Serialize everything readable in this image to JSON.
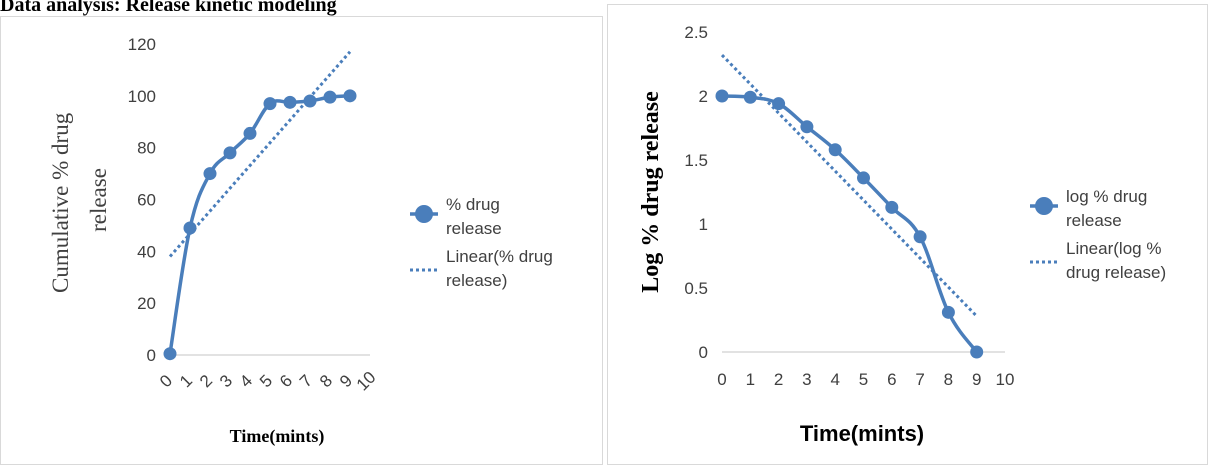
{
  "page": {
    "heading": "Data analysis: Release kinetic modeling"
  },
  "chart_data": [
    {
      "type": "line",
      "title": "",
      "xlabel": "Time(mints)",
      "ylabel": "Cumulative % drug release",
      "xlim": [
        0,
        10
      ],
      "ylim": [
        0,
        120
      ],
      "yticks": [
        0,
        20,
        40,
        60,
        80,
        100,
        120
      ],
      "xticks": [
        "0",
        "1",
        "2",
        "3",
        "4",
        "5",
        "6",
        "7",
        "8",
        "9",
        "10"
      ],
      "x": [
        0,
        1,
        2,
        3,
        4,
        5,
        6,
        7,
        8,
        9
      ],
      "series": [
        {
          "name": "% drug release",
          "values": [
            0.5,
            49,
            70,
            78,
            85.5,
            97,
            97.5,
            98,
            99.5,
            100
          ]
        }
      ],
      "trendline": {
        "name": "Linear(% drug release)",
        "x": [
          0,
          9
        ],
        "y": [
          38,
          117
        ]
      },
      "legend": "right",
      "grid": false,
      "colors": {
        "series": "#4a7ebb",
        "trend": "#4a7ebb",
        "axis": "#d9d9d9"
      }
    },
    {
      "type": "line",
      "title": "",
      "xlabel": "Time(mints)",
      "ylabel": "Log % drug release",
      "xlim": [
        0,
        10
      ],
      "ylim": [
        0,
        2.5
      ],
      "yticks": [
        "0",
        "0.5",
        "1",
        "1.5",
        "2",
        "2.5"
      ],
      "xticks": [
        "0",
        "1",
        "2",
        "3",
        "4",
        "5",
        "6",
        "7",
        "8",
        "9",
        "10"
      ],
      "x": [
        0,
        1,
        2,
        3,
        4,
        5,
        6,
        7,
        8,
        9
      ],
      "series": [
        {
          "name": "log % drug release",
          "values": [
            2.0,
            1.99,
            1.94,
            1.76,
            1.58,
            1.36,
            1.13,
            0.9,
            0.31,
            0.0
          ]
        }
      ],
      "trendline": {
        "name": "Linear(log % drug release)",
        "x": [
          0,
          9
        ],
        "y": [
          2.32,
          0.28
        ]
      },
      "legend": "right",
      "grid": false,
      "colors": {
        "series": "#4a7ebb",
        "trend": "#4a7ebb",
        "axis": "#d9d9d9"
      }
    }
  ]
}
